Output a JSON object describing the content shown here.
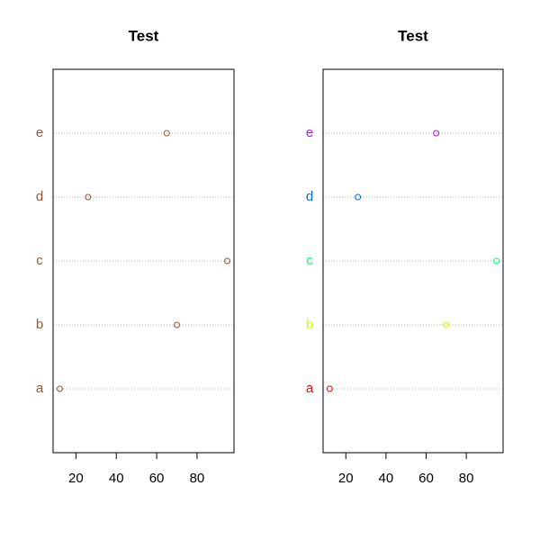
{
  "chart_data": [
    {
      "type": "dot",
      "title": "Test",
      "categories": [
        "a",
        "b",
        "c",
        "d",
        "e"
      ],
      "values": [
        12,
        70,
        95,
        26,
        65
      ],
      "colors": [
        "#A0522D",
        "#A0522D",
        "#A0522D",
        "#A0522D",
        "#A0522D"
      ],
      "xlim": [
        8.68,
        98.32
      ],
      "xticks": [
        20,
        40,
        60,
        80
      ],
      "grid": true
    },
    {
      "type": "dot",
      "title": "Test",
      "categories": [
        "a",
        "b",
        "c",
        "d",
        "e"
      ],
      "values": [
        12,
        70,
        95,
        26,
        65
      ],
      "colors": [
        "#FF0000",
        "#CCFF00",
        "#00FF66",
        "#0066FF",
        "#CC00FF"
      ],
      "xlim": [
        8.68,
        98.32
      ],
      "xticks": [
        20,
        40,
        60,
        80
      ],
      "grid": true
    }
  ]
}
